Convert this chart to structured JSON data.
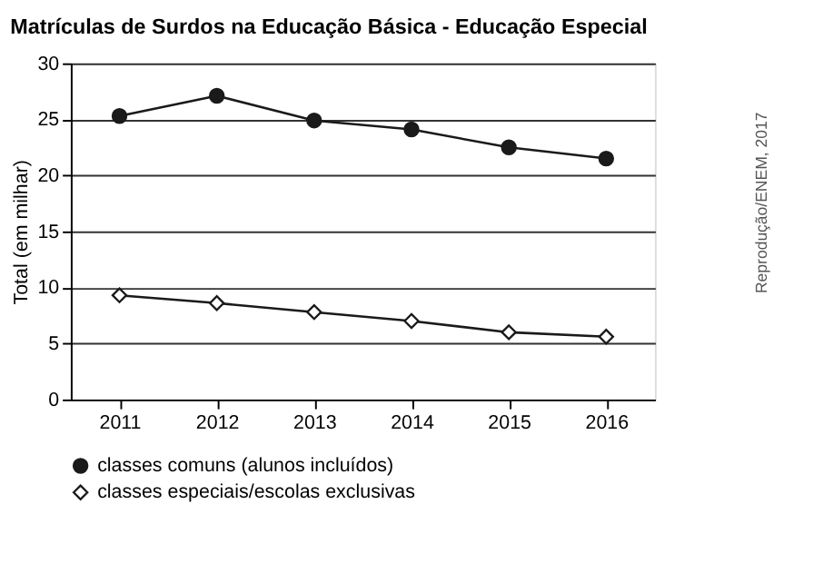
{
  "chart_data": {
    "type": "line",
    "title": "Matrículas de Surdos na Educação Básica - Educação Especial",
    "ylabel": "Total (em milhar)",
    "categories": [
      "2011",
      "2012",
      "2013",
      "2014",
      "2015",
      "2016"
    ],
    "series": [
      {
        "name": "classes comuns (alunos incluídos)",
        "color": "#1a1a1a",
        "marker": "circle",
        "values": [
          25.3,
          27.1,
          24.9,
          24.1,
          22.5,
          21.5
        ]
      },
      {
        "name": "classes especiais/escolas exclusivas",
        "color": "#1a1a1a",
        "marker": "diamond",
        "values": [
          9.3,
          8.6,
          7.8,
          7.0,
          6.0,
          5.6
        ]
      }
    ],
    "ylim": [
      0,
      30
    ],
    "yticks": [
      0,
      5,
      10,
      15,
      20,
      25,
      30
    ],
    "grid": "y",
    "legend": "bottom",
    "annotations": [
      "Reprodução/ENEM, 2017"
    ]
  }
}
